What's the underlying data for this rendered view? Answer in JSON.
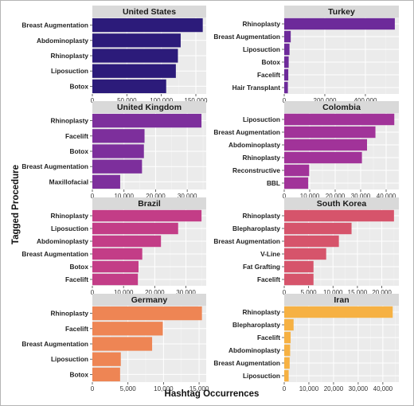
{
  "figure": {
    "xlabel": "Hashtag Occurrences",
    "ylabel": "Tagged Procedure"
  },
  "chart_data": [
    {
      "type": "bar",
      "orientation": "horizontal",
      "title": "United States",
      "color": "#2c1b7a",
      "categories": [
        "Breast Augmentation",
        "Abdominoplasty",
        "Rhinoplasty",
        "Liposuction",
        "Botox"
      ],
      "values": [
        160000,
        128000,
        124000,
        121000,
        107000
      ],
      "xlim": [
        0,
        165000
      ],
      "xticks": [
        0,
        50000,
        100000,
        150000
      ],
      "xtick_labels": [
        "0",
        "50,000",
        "100,000",
        "150,000"
      ]
    },
    {
      "type": "bar",
      "orientation": "horizontal",
      "title": "Turkey",
      "color": "#6d2a9a",
      "categories": [
        "Rhinoplasty",
        "Breast Augmentation",
        "Liposuction",
        "Botox",
        "Facelift",
        "Hair Transplant"
      ],
      "values": [
        545000,
        32000,
        26000,
        22000,
        20000,
        18000
      ],
      "xlim": [
        0,
        565000
      ],
      "xticks": [
        0,
        200000,
        400000
      ],
      "xtick_labels": [
        "0",
        "200,000",
        "400,000"
      ]
    },
    {
      "type": "bar",
      "orientation": "horizontal",
      "title": "United Kingdom",
      "color": "#7d2f9c",
      "categories": [
        "Rhinoplasty",
        "Facelift",
        "Botox",
        "Breast Augmentation",
        "Maxillofacial"
      ],
      "values": [
        34500,
        16500,
        16300,
        15700,
        8800
      ],
      "xlim": [
        0,
        36000
      ],
      "xticks": [
        0,
        10000,
        20000,
        30000
      ],
      "xtick_labels": [
        "0",
        "10,000",
        "20,000",
        "30,000"
      ]
    },
    {
      "type": "bar",
      "orientation": "horizontal",
      "title": "Colombia",
      "color": "#a13399",
      "categories": [
        "Liposuction",
        "Breast Augmentation",
        "Abdominoplasty",
        "Rhinoplasty",
        "Reconstructive",
        "BBL"
      ],
      "values": [
        43200,
        35800,
        32500,
        30500,
        9800,
        9400
      ],
      "xlim": [
        0,
        45000
      ],
      "xticks": [
        0,
        10000,
        20000,
        30000,
        40000
      ],
      "xtick_labels": [
        "0",
        "10,000",
        "20,000",
        "30,000",
        "40,000"
      ]
    },
    {
      "type": "bar",
      "orientation": "horizontal",
      "title": "Brazil",
      "color": "#c33d87",
      "categories": [
        "Rhinoplasty",
        "Liposuction",
        "Abdominoplasty",
        "Breast Augmentation",
        "Botox",
        "Facelift"
      ],
      "values": [
        35000,
        27500,
        22000,
        16000,
        14800,
        14600
      ],
      "xlim": [
        0,
        36500
      ],
      "xticks": [
        0,
        10000,
        20000,
        30000
      ],
      "xtick_labels": [
        "0",
        "10,000",
        "20,000",
        "30,000"
      ]
    },
    {
      "type": "bar",
      "orientation": "horizontal",
      "title": "South Korea",
      "color": "#d6546b",
      "categories": [
        "Rhinoplasty",
        "Blepharoplasty",
        "Breast Augmentation",
        "V-Line",
        "Fat Grafting",
        "Facelift"
      ],
      "values": [
        22500,
        13800,
        11200,
        8600,
        6000,
        6000
      ],
      "xlim": [
        0,
        23500
      ],
      "xticks": [
        0,
        5000,
        10000,
        15000,
        20000
      ],
      "xtick_labels": [
        "0",
        "5,000",
        "10,000",
        "15,000",
        "20,000"
      ]
    },
    {
      "type": "bar",
      "orientation": "horizontal",
      "title": "Germany",
      "color": "#ee8554",
      "categories": [
        "Rhinoplasty",
        "Facelift",
        "Breast Augmentation",
        "Liposuction",
        "Botox"
      ],
      "values": [
        15400,
        9900,
        8400,
        4000,
        3900
      ],
      "xlim": [
        0,
        16000
      ],
      "xticks": [
        0,
        5000,
        10000,
        15000
      ],
      "xtick_labels": [
        "0",
        "5,000",
        "10,000",
        "15,000"
      ]
    },
    {
      "type": "bar",
      "orientation": "horizontal",
      "title": "Iran",
      "color": "#f6b143",
      "categories": [
        "Rhinoplasty",
        "Blepharoplasty",
        "Facelift",
        "Abdominoplasty",
        "Breast Augmentation",
        "Liposuction"
      ],
      "values": [
        44000,
        3800,
        2600,
        2400,
        2200,
        1800
      ],
      "xlim": [
        0,
        46500
      ],
      "xticks": [
        0,
        10000,
        20000,
        30000,
        40000
      ],
      "xtick_labels": [
        "0",
        "10,000",
        "20,000",
        "30,000",
        "40,000"
      ]
    }
  ]
}
